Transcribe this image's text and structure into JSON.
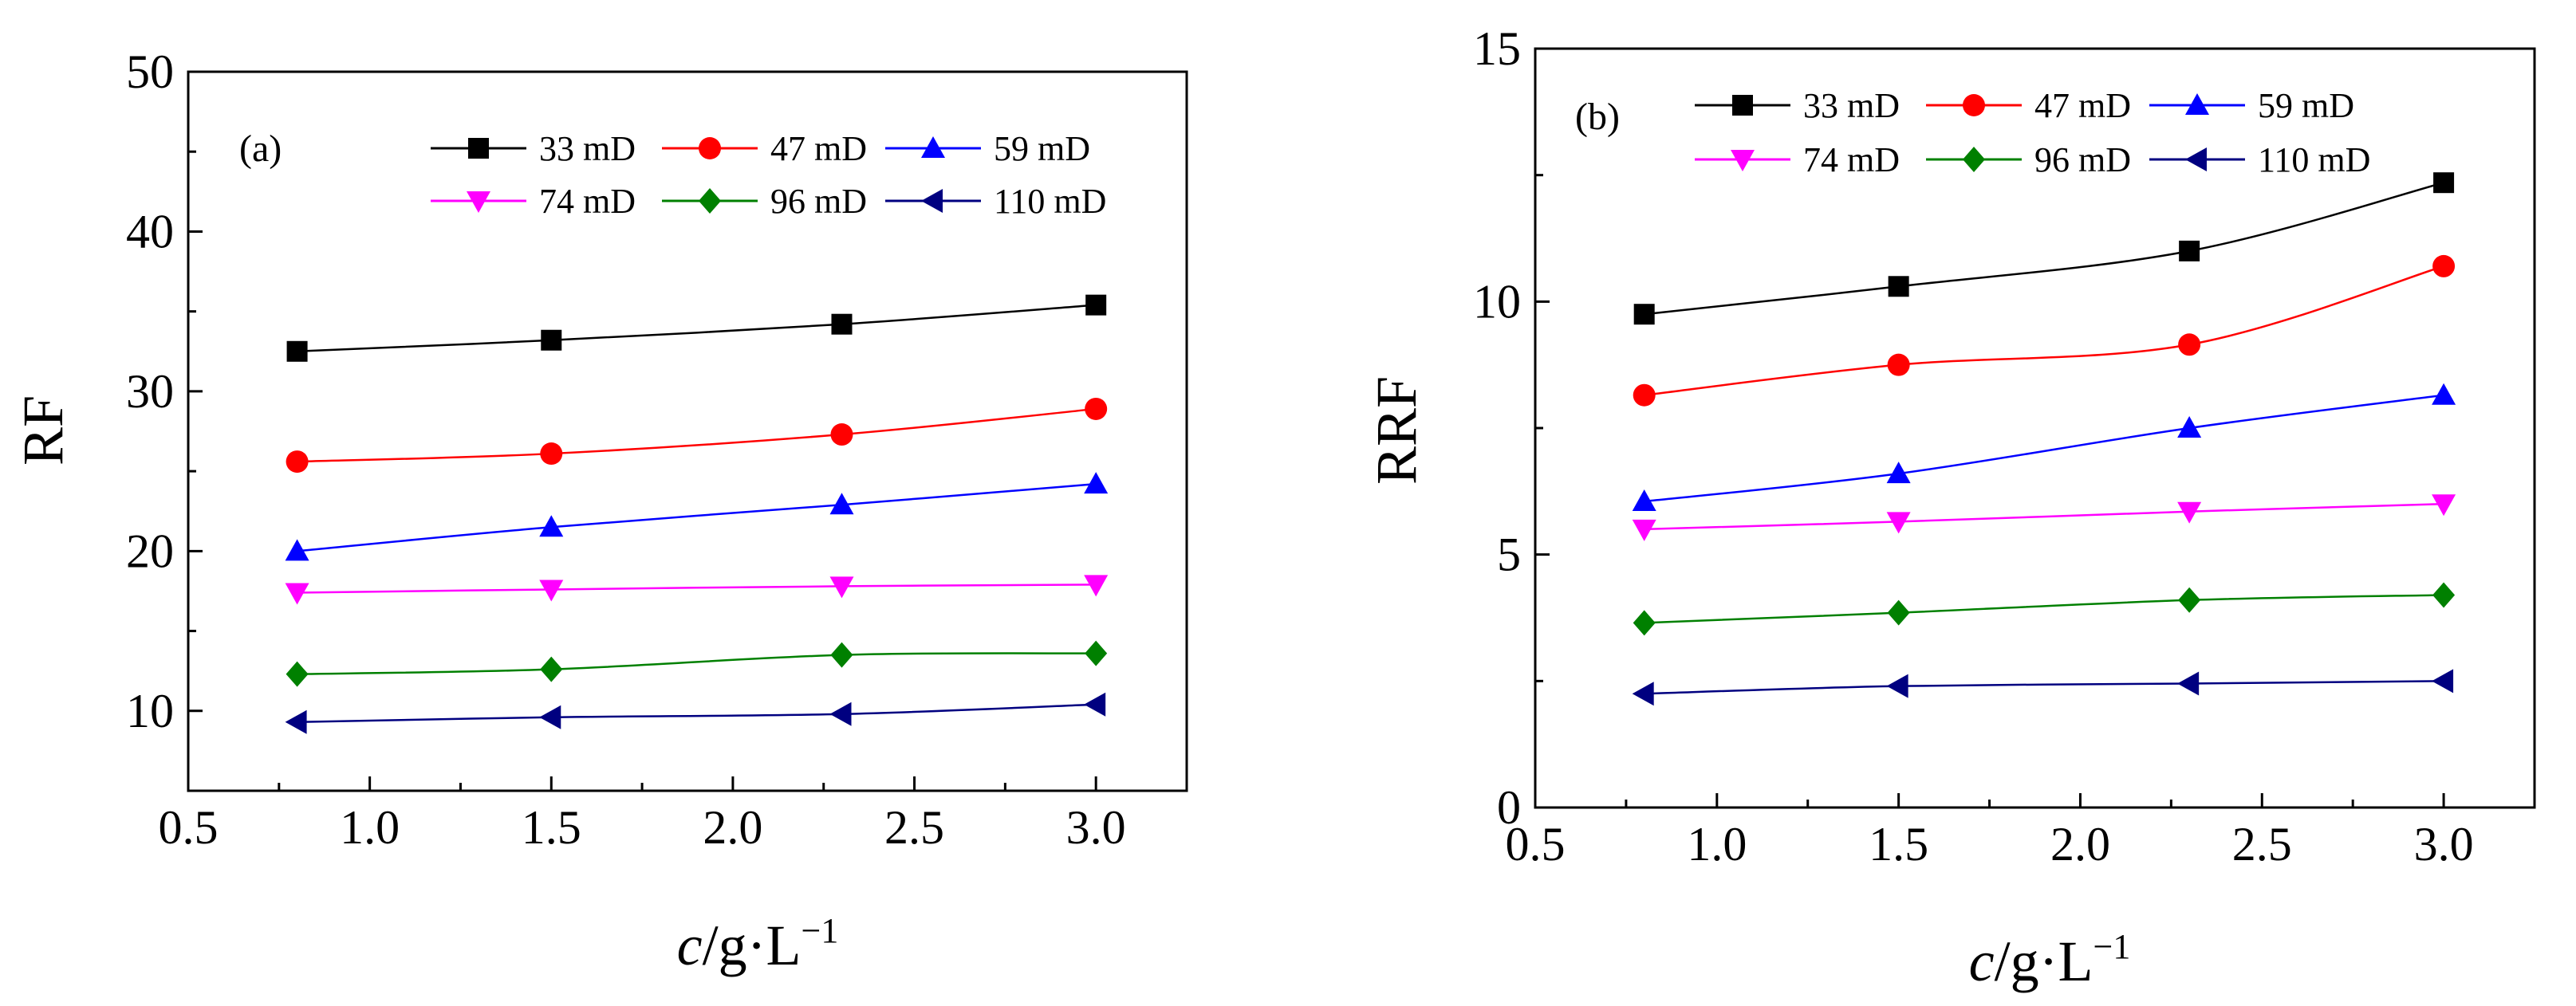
{
  "figure": {
    "panels": [
      "a",
      "b"
    ]
  },
  "chart_data": [
    {
      "type": "line",
      "panel_label": "(a)",
      "title": "",
      "xlabel": {
        "italic": "c",
        "rest": "/g·L",
        "sup": "−1"
      },
      "ylabel": "RF",
      "xlim": [
        0.5,
        3.25
      ],
      "ylim": [
        5,
        50
      ],
      "xticks": [
        "0.5",
        "1.0",
        "1.5",
        "2.0",
        "2.5",
        "3.0"
      ],
      "yticks": [
        "10",
        "20",
        "30",
        "40",
        "50"
      ],
      "x": [
        0.8,
        1.5,
        2.3,
        3.0
      ],
      "series": [
        {
          "name": "33 mD",
          "color": "#000000",
          "marker": "square",
          "values": [
            32.5,
            33.2,
            34.2,
            35.4
          ]
        },
        {
          "name": "47 mD",
          "color": "#ff0000",
          "marker": "circle",
          "values": [
            25.6,
            26.1,
            27.3,
            28.9
          ]
        },
        {
          "name": "59 mD",
          "color": "#0000ff",
          "marker": "triangle-up",
          "values": [
            20.0,
            21.5,
            22.9,
            24.2
          ]
        },
        {
          "name": "74 mD",
          "color": "#ff00ff",
          "marker": "triangle-down",
          "values": [
            17.4,
            17.6,
            17.8,
            17.9
          ]
        },
        {
          "name": "96 mD",
          "color": "#008000",
          "marker": "diamond",
          "values": [
            12.3,
            12.6,
            13.5,
            13.6
          ]
        },
        {
          "name": "110 mD",
          "color": "#000080",
          "marker": "triangle-left",
          "values": [
            9.3,
            9.6,
            9.8,
            10.4
          ]
        }
      ],
      "legend_position": "top-right",
      "grid": false
    },
    {
      "type": "line",
      "panel_label": "(b)",
      "title": "",
      "xlabel": {
        "italic": "c",
        "rest": "/g·L",
        "sup": "−1"
      },
      "ylabel": "RRF",
      "xlim": [
        0.5,
        3.25
      ],
      "ylim": [
        0,
        15
      ],
      "xticks": [
        "0.5",
        "1.0",
        "1.5",
        "2.0",
        "2.5",
        "3.0"
      ],
      "yticks": [
        "0",
        "5",
        "10",
        "15"
      ],
      "x": [
        0.8,
        1.5,
        2.3,
        3.0
      ],
      "series": [
        {
          "name": "33 mD",
          "color": "#000000",
          "marker": "square",
          "values": [
            9.75,
            10.3,
            11.0,
            12.35
          ]
        },
        {
          "name": "47 mD",
          "color": "#ff0000",
          "marker": "circle",
          "values": [
            8.15,
            8.75,
            9.15,
            10.7
          ]
        },
        {
          "name": "59 mD",
          "color": "#0000ff",
          "marker": "triangle-up",
          "values": [
            6.05,
            6.6,
            7.5,
            8.15
          ]
        },
        {
          "name": "74 mD",
          "color": "#ff00ff",
          "marker": "triangle-down",
          "values": [
            5.5,
            5.65,
            5.85,
            6.0
          ]
        },
        {
          "name": "96 mD",
          "color": "#008000",
          "marker": "diamond",
          "values": [
            3.65,
            3.85,
            4.1,
            4.2
          ]
        },
        {
          "name": "110 mD",
          "color": "#000080",
          "marker": "triangle-left",
          "values": [
            2.25,
            2.4,
            2.45,
            2.5
          ]
        }
      ],
      "legend_position": "top",
      "grid": false
    }
  ]
}
